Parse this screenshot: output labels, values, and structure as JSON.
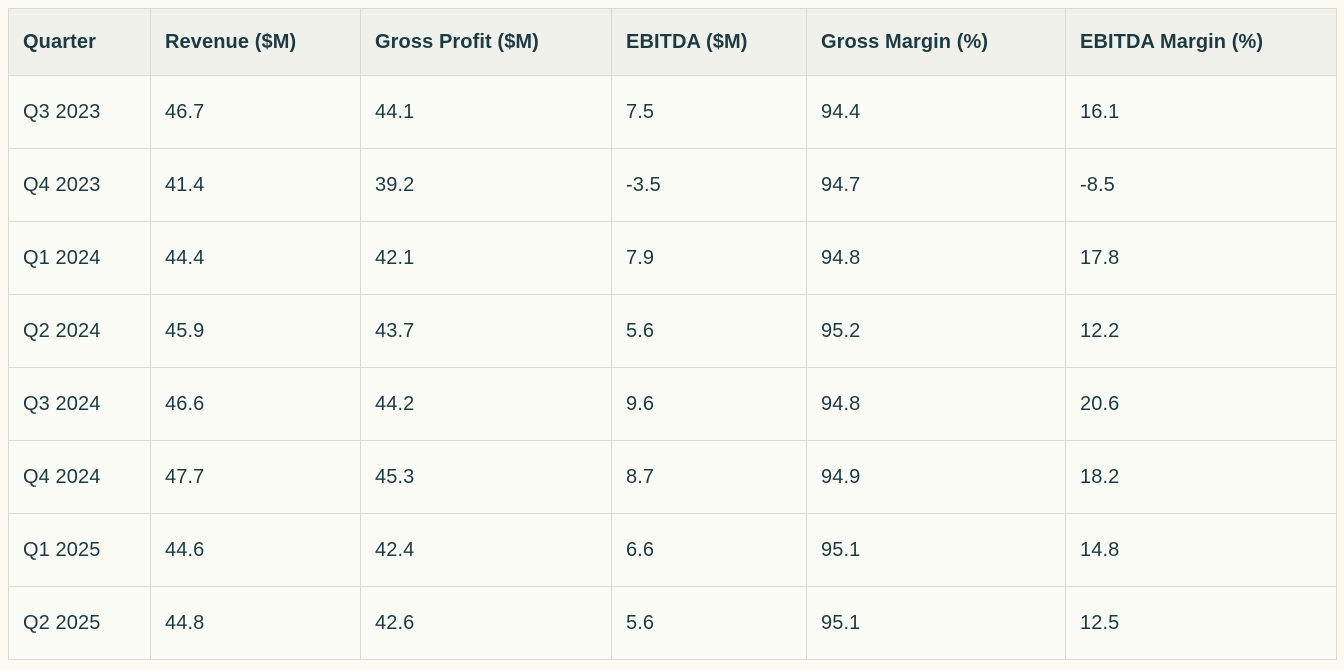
{
  "table": {
    "columns": [
      "Quarter",
      "Revenue ($M)",
      "Gross Profit ($M)",
      "EBITDA ($M)",
      "Gross Margin (%)",
      "EBITDA Margin (%)"
    ],
    "rows": [
      [
        "Q3 2023",
        "46.7",
        "44.1",
        "7.5",
        "94.4",
        "16.1"
      ],
      [
        "Q4 2023",
        "41.4",
        "39.2",
        "-3.5",
        "94.7",
        "-8.5"
      ],
      [
        "Q1 2024",
        "44.4",
        "42.1",
        "7.9",
        "94.8",
        "17.8"
      ],
      [
        "Q2 2024",
        "45.9",
        "43.7",
        "5.6",
        "95.2",
        "12.2"
      ],
      [
        "Q3 2024",
        "46.6",
        "44.2",
        "9.6",
        "94.8",
        "20.6"
      ],
      [
        "Q4 2024",
        "47.7",
        "45.3",
        "8.7",
        "94.9",
        "18.2"
      ],
      [
        "Q1 2025",
        "44.6",
        "42.4",
        "6.6",
        "95.1",
        "14.8"
      ],
      [
        "Q2 2025",
        "44.8",
        "42.6",
        "5.6",
        "95.1",
        "12.5"
      ]
    ]
  },
  "colors": {
    "page_background": "#fbfbf3",
    "row_background": "#fcfcf6",
    "header_background": "#f0f1ea",
    "border": "#d9dad1",
    "text": "#1b3a43"
  },
  "chart_data": {
    "type": "table",
    "columns": [
      "Quarter",
      "Revenue ($M)",
      "Gross Profit ($M)",
      "EBITDA ($M)",
      "Gross Margin (%)",
      "EBITDA Margin (%)"
    ],
    "rows": [
      [
        "Q3 2023",
        46.7,
        44.1,
        7.5,
        94.4,
        16.1
      ],
      [
        "Q4 2023",
        41.4,
        39.2,
        -3.5,
        94.7,
        -8.5
      ],
      [
        "Q1 2024",
        44.4,
        42.1,
        7.9,
        94.8,
        17.8
      ],
      [
        "Q2 2024",
        45.9,
        43.7,
        5.6,
        95.2,
        12.2
      ],
      [
        "Q3 2024",
        46.6,
        44.2,
        9.6,
        94.8,
        20.6
      ],
      [
        "Q4 2024",
        47.7,
        45.3,
        8.7,
        94.9,
        18.2
      ],
      [
        "Q1 2025",
        44.6,
        42.4,
        6.6,
        95.1,
        14.8
      ],
      [
        "Q2 2025",
        44.8,
        42.6,
        5.6,
        95.1,
        12.5
      ]
    ]
  }
}
